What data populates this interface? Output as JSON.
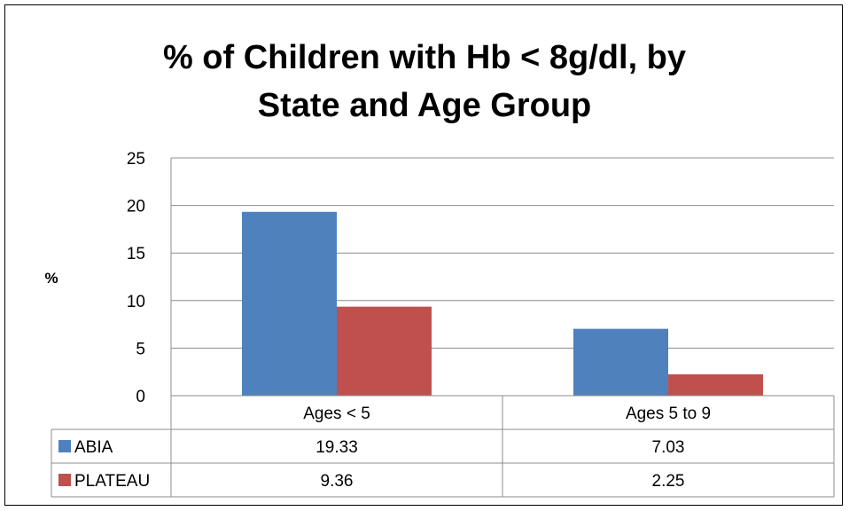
{
  "chart_data": {
    "type": "bar",
    "title": [
      "% of Children with Hb < 8g/dl, by",
      "State and Age Group"
    ],
    "ylabel": "%",
    "xlabel": "",
    "ylim": [
      0,
      25
    ],
    "yticks": [
      0,
      5,
      10,
      15,
      20,
      25
    ],
    "grid": true,
    "legend": "data-table",
    "categories": [
      "Ages < 5",
      "Ages 5 to 9"
    ],
    "series": [
      {
        "name": "ABIA",
        "values": [
          19.33,
          7.03
        ],
        "display": [
          "19.33",
          "7.03"
        ],
        "color": "#4F81BD"
      },
      {
        "name": "PLATEAU",
        "values": [
          9.36,
          2.25
        ],
        "display": [
          "9.36",
          "2.25"
        ],
        "color": "#C0504D"
      }
    ]
  }
}
